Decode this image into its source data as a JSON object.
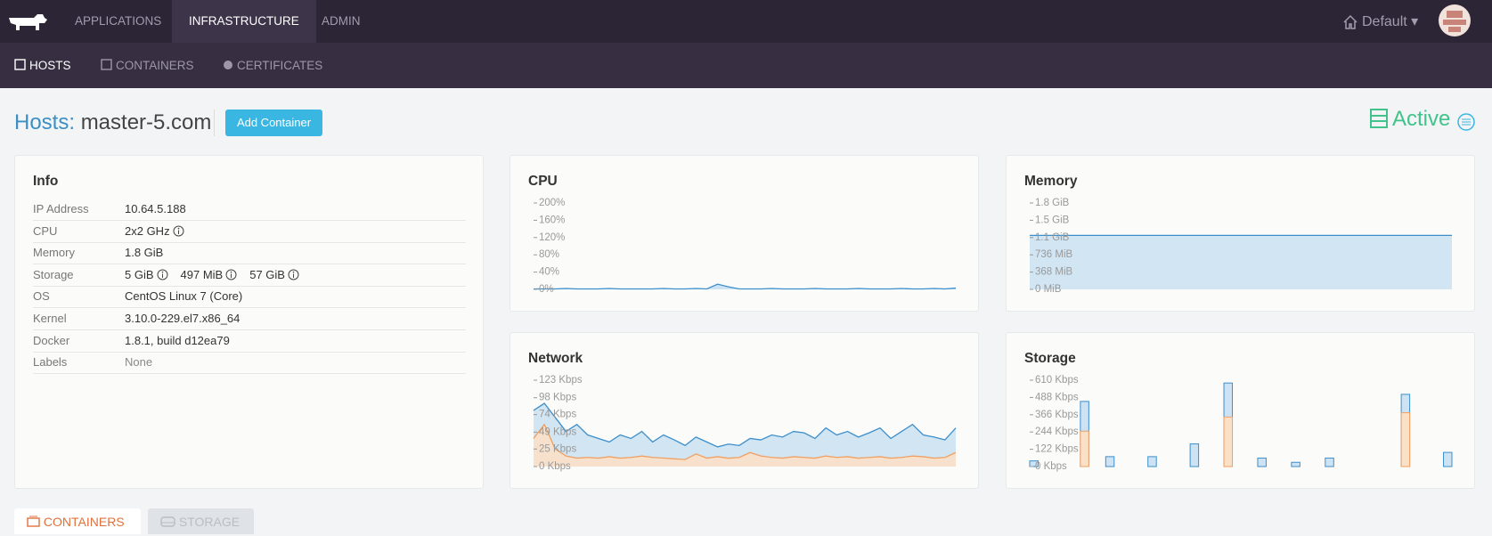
{
  "nav": {
    "items": [
      "APPLICATIONS",
      "INFRASTRUCTURE",
      "ADMIN"
    ],
    "environment": "Default"
  },
  "subnav": [
    "HOSTS",
    "CONTAINERS",
    "CERTIFICATES"
  ],
  "header": {
    "prefix": "Hosts:",
    "name": "master-5.com",
    "button": "Add Container",
    "state": "Active"
  },
  "info": {
    "title": "Info",
    "rows": [
      {
        "label": "IP Address",
        "values": [
          "10.64.5.188"
        ],
        "icons": false
      },
      {
        "label": "CPU",
        "values": [
          "2x2 GHz"
        ],
        "icons": true
      },
      {
        "label": "Memory",
        "values": [
          "1.8 GiB"
        ],
        "icons": false
      },
      {
        "label": "Storage",
        "values": [
          "5 GiB",
          "497 MiB",
          "57 GiB"
        ],
        "icons": true
      },
      {
        "label": "OS",
        "values": [
          "CentOS Linux 7 (Core)"
        ],
        "icons": false
      },
      {
        "label": "Kernel",
        "values": [
          "3.10.0-229.el7.x86_64"
        ],
        "icons": false
      },
      {
        "label": "Docker",
        "values": [
          "1.8.1, build d12ea79"
        ],
        "icons": false
      },
      {
        "label": "Labels",
        "values": [
          "None"
        ],
        "icons": false,
        "muted": true
      }
    ]
  },
  "panels": [
    {
      "title": "CPU",
      "chart": {
        "type": "line",
        "ylim": [
          0,
          200
        ],
        "yticks": [
          {
            "value": 0,
            "label": "0%"
          },
          {
            "value": 40,
            "label": "40%"
          },
          {
            "value": 80,
            "label": "80%"
          },
          {
            "value": 120,
            "label": "120%"
          },
          {
            "value": 160,
            "label": "160%"
          },
          {
            "value": 200,
            "label": "200%"
          }
        ],
        "series": [
          {
            "color": "#3d8fcb",
            "fill": "#cde2f2",
            "values": [
              1,
              1,
              1,
              2,
              1,
              1,
              1,
              2,
              1,
              1,
              1,
              1,
              2,
              1,
              1,
              2,
              1,
              12,
              6,
              1,
              1,
              1,
              2,
              1,
              1,
              1,
              2,
              1,
              1,
              1,
              2,
              1,
              1,
              1,
              2,
              1,
              1,
              2,
              1,
              3
            ]
          }
        ]
      }
    },
    {
      "title": "Memory",
      "chart": {
        "type": "area",
        "ylim": [
          0,
          1840
        ],
        "yticks": [
          {
            "value": 0,
            "label": "0 MiB"
          },
          {
            "value": 368,
            "label": "368 MiB"
          },
          {
            "value": 736,
            "label": "736 MiB"
          },
          {
            "value": 1104,
            "label": "1.1 GiB"
          },
          {
            "value": 1472,
            "label": "1.5 GiB"
          },
          {
            "value": 1840,
            "label": "1.8 GiB"
          }
        ],
        "series": [
          {
            "color": "#3d8fcb",
            "fill": "#cde2f2",
            "values": [
              1150,
              1150,
              1150,
              1150,
              1150,
              1150,
              1150,
              1150,
              1150,
              1150
            ]
          }
        ]
      }
    },
    {
      "title": "Network",
      "chart": {
        "type": "area",
        "ylim": [
          0,
          123
        ],
        "yticks": [
          {
            "value": 0,
            "label": "0 Kbps"
          },
          {
            "value": 25,
            "label": "25 Kbps"
          },
          {
            "value": 49,
            "label": "49 Kbps"
          },
          {
            "value": 74,
            "label": "74 Kbps"
          },
          {
            "value": 98,
            "label": "98 Kbps"
          },
          {
            "value": 123,
            "label": "123 Kbps"
          }
        ],
        "series": [
          {
            "color": "#3d8fcb",
            "fill": "#cde2f2",
            "values": [
              80,
              90,
              70,
              50,
              60,
              45,
              40,
              35,
              45,
              40,
              50,
              35,
              45,
              38,
              30,
              42,
              35,
              28,
              32,
              30,
              40,
              38,
              45,
              42,
              50,
              48,
              40,
              55,
              45,
              50,
              42,
              48,
              55,
              40,
              50,
              60,
              45,
              42,
              38,
              55
            ]
          },
          {
            "color": "#f0a063",
            "fill": "#fbe0c8",
            "values": [
              40,
              60,
              25,
              15,
              12,
              13,
              12,
              14,
              12,
              13,
              15,
              13,
              12,
              11,
              10,
              18,
              12,
              14,
              12,
              13,
              20,
              15,
              13,
              12,
              14,
              13,
              12,
              15,
              13,
              14,
              12,
              13,
              14,
              12,
              13,
              15,
              14,
              12,
              13,
              20
            ]
          }
        ]
      }
    },
    {
      "title": "Storage",
      "chart": {
        "type": "bar",
        "ylim": [
          0,
          610
        ],
        "yticks": [
          {
            "value": 0,
            "label": "0 Kbps"
          },
          {
            "value": 122,
            "label": "122 Kbps"
          },
          {
            "value": 244,
            "label": "244 Kbps"
          },
          {
            "value": 366,
            "label": "366 Kbps"
          },
          {
            "value": 488,
            "label": "488 Kbps"
          },
          {
            "value": 610,
            "label": "610 Kbps"
          }
        ],
        "series": [
          {
            "color": "#3d8fcb",
            "fill": "#cde2f2",
            "values": [
              40,
              0,
              0,
              0,
              0,
              0,
              460,
              0,
              0,
              70,
              0,
              0,
              0,
              0,
              70,
              0,
              0,
              0,
              0,
              160,
              0,
              0,
              0,
              590,
              0,
              0,
              0,
              60,
              0,
              0,
              0,
              30,
              0,
              0,
              0,
              60,
              0,
              0,
              0,
              0,
              0,
              0,
              0,
              0,
              510,
              0,
              0,
              0,
              0,
              100
            ]
          },
          {
            "color": "#f0a063",
            "fill": "#fbe0c8",
            "values": [
              0,
              0,
              0,
              0,
              0,
              0,
              250,
              0,
              0,
              0,
              0,
              0,
              0,
              0,
              0,
              0,
              0,
              0,
              0,
              0,
              0,
              0,
              0,
              350,
              0,
              0,
              0,
              0,
              0,
              0,
              0,
              0,
              0,
              0,
              0,
              0,
              0,
              0,
              0,
              0,
              0,
              0,
              0,
              0,
              380,
              0,
              0,
              0,
              0,
              0
            ]
          }
        ]
      }
    }
  ],
  "tabs": [
    "CONTAINERS",
    "STORAGE"
  ]
}
